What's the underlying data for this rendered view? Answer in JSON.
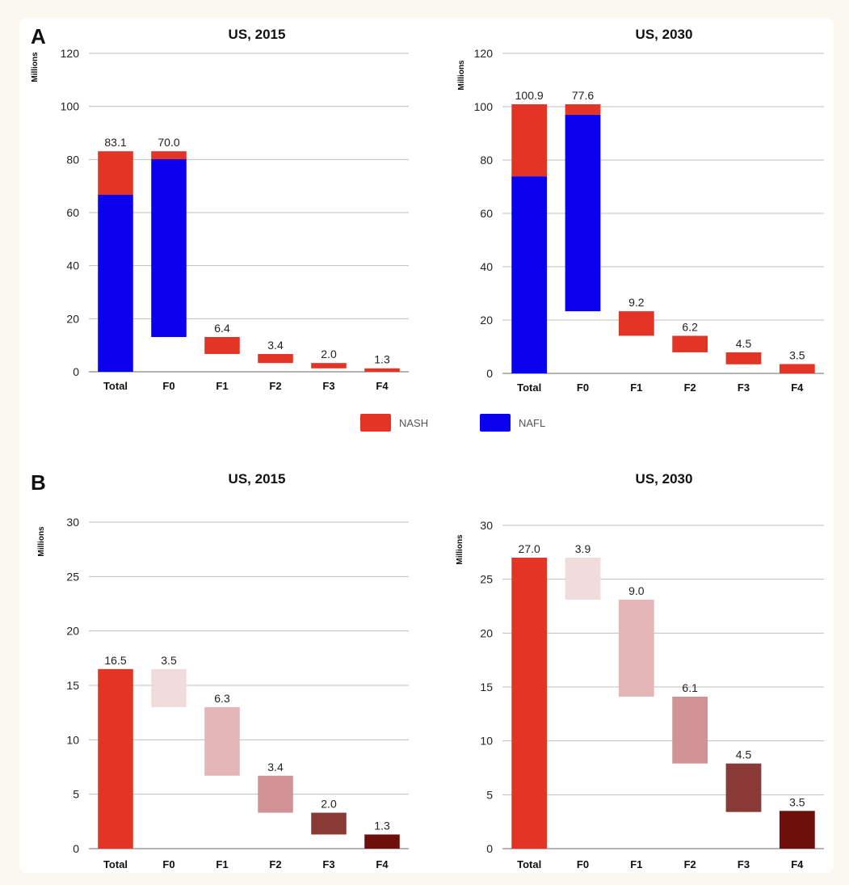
{
  "panels": [
    {
      "label": "A"
    },
    {
      "label": "B"
    }
  ],
  "legend": [
    {
      "name": "NASH",
      "color": "#e33526"
    },
    {
      "name": "NAFL",
      "color": "#0a00ee"
    }
  ],
  "chart_data": [
    {
      "type": "bar",
      "style": "waterfall-stacked",
      "title": "US, 2015",
      "ylabel": "Millions",
      "ylim": [
        0,
        120
      ],
      "yticks": [
        0,
        20,
        40,
        60,
        80,
        100,
        120
      ],
      "categories": [
        "Total",
        "F0",
        "F1",
        "F2",
        "F3",
        "F4"
      ],
      "labels": [
        "83.1",
        "70.0",
        "6.4",
        "3.4",
        "2.0",
        "1.3"
      ],
      "segments": [
        [
          {
            "series": "NAFL",
            "from": 0,
            "to": 66.7
          },
          {
            "series": "NASH",
            "from": 66.7,
            "to": 83.1
          }
        ],
        [
          {
            "series": "NAFL",
            "from": 13.1,
            "to": 80.1
          },
          {
            "series": "NASH",
            "from": 80.1,
            "to": 83.1
          }
        ],
        [
          {
            "series": "NASH",
            "from": 6.7,
            "to": 13.1
          }
        ],
        [
          {
            "series": "NASH",
            "from": 3.3,
            "to": 6.7
          }
        ],
        [
          {
            "series": "NASH",
            "from": 1.3,
            "to": 3.3
          }
        ],
        [
          {
            "series": "NASH",
            "from": 0,
            "to": 1.3
          }
        ]
      ]
    },
    {
      "type": "bar",
      "style": "waterfall-stacked",
      "title": "US, 2030",
      "ylabel": "Millions",
      "ylim": [
        0,
        120
      ],
      "yticks": [
        0,
        20,
        40,
        60,
        80,
        100,
        120
      ],
      "categories": [
        "Total",
        "F0",
        "F1",
        "F2",
        "F3",
        "F4"
      ],
      "labels": [
        "100.9",
        "77.6",
        "9.2",
        "6.2",
        "4.5",
        "3.5"
      ],
      "segments": [
        [
          {
            "series": "NAFL",
            "from": 0,
            "to": 73.9
          },
          {
            "series": "NASH",
            "from": 73.9,
            "to": 100.9
          }
        ],
        [
          {
            "series": "NAFL",
            "from": 23.3,
            "to": 97.0
          },
          {
            "series": "NASH",
            "from": 97.0,
            "to": 100.9
          }
        ],
        [
          {
            "series": "NASH",
            "from": 14.1,
            "to": 23.3
          }
        ],
        [
          {
            "series": "NASH",
            "from": 7.9,
            "to": 14.1
          }
        ],
        [
          {
            "series": "NASH",
            "from": 3.4,
            "to": 7.9
          }
        ],
        [
          {
            "series": "NASH",
            "from": 0,
            "to": 3.5
          }
        ]
      ]
    },
    {
      "type": "bar",
      "style": "waterfall",
      "title": "US, 2015",
      "ylabel": "Millions",
      "ylim": [
        0,
        30
      ],
      "yticks": [
        0,
        5,
        10,
        15,
        20,
        25,
        30
      ],
      "categories": [
        "Total",
        "F0",
        "F1",
        "F2",
        "F3",
        "F4"
      ],
      "labels": [
        "16.5",
        "3.5",
        "6.3",
        "3.4",
        "2.0",
        "1.3"
      ],
      "segments": [
        [
          {
            "color": "#e33526",
            "from": 0,
            "to": 16.5
          }
        ],
        [
          {
            "color": "#f0dcdc",
            "from": 13.0,
            "to": 16.5
          }
        ],
        [
          {
            "color": "#e4b6b7",
            "from": 6.7,
            "to": 13.0
          }
        ],
        [
          {
            "color": "#d09294",
            "from": 3.3,
            "to": 6.7
          }
        ],
        [
          {
            "color": "#8a3a36",
            "from": 1.3,
            "to": 3.3
          }
        ],
        [
          {
            "color": "#6e0f0b",
            "from": 0,
            "to": 1.3
          }
        ]
      ]
    },
    {
      "type": "bar",
      "style": "waterfall",
      "title": "US, 2030",
      "ylabel": "Millions",
      "ylim": [
        0,
        30
      ],
      "yticks": [
        0,
        5,
        10,
        15,
        20,
        25,
        30
      ],
      "categories": [
        "Total",
        "F0",
        "F1",
        "F2",
        "F3",
        "F4"
      ],
      "labels": [
        "27.0",
        "3.9",
        "9.0",
        "6.1",
        "4.5",
        "3.5"
      ],
      "segments": [
        [
          {
            "color": "#e33526",
            "from": 0,
            "to": 27.0
          }
        ],
        [
          {
            "color": "#f0dcdc",
            "from": 23.1,
            "to": 27.0
          }
        ],
        [
          {
            "color": "#e4b6b7",
            "from": 14.1,
            "to": 23.1
          }
        ],
        [
          {
            "color": "#d09294",
            "from": 7.9,
            "to": 14.1
          }
        ],
        [
          {
            "color": "#8a3a36",
            "from": 3.4,
            "to": 7.9
          }
        ],
        [
          {
            "color": "#6e0f0b",
            "from": 0,
            "to": 3.5
          }
        ]
      ]
    }
  ]
}
